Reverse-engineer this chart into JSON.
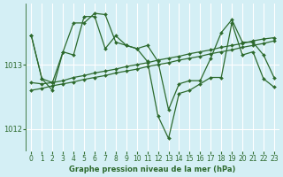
{
  "background_color": "#d4eff5",
  "grid_color": "#ffffff",
  "line_color": "#2d6a2d",
  "marker_color": "#2d6a2d",
  "title": "Graphe pression niveau de la mer (hPa)",
  "xlim": [
    -0.5,
    23.5
  ],
  "ylim": [
    1011.65,
    1013.95
  ],
  "yticks": [
    1012,
    1013
  ],
  "xticks": [
    0,
    1,
    2,
    3,
    4,
    5,
    6,
    7,
    8,
    9,
    10,
    11,
    12,
    13,
    14,
    15,
    16,
    17,
    18,
    19,
    20,
    21,
    22,
    23
  ],
  "series": [
    [
      1013.45,
      1012.78,
      1012.72,
      1013.2,
      1013.65,
      1013.65,
      1013.8,
      1013.78,
      1013.35,
      1013.3,
      1013.25,
      1013.05,
      1012.2,
      1011.85,
      1012.55,
      1012.6,
      1012.7,
      1012.8,
      1012.8,
      1013.65,
      1013.15,
      1013.2,
      1012.78,
      1012.65
    ],
    [
      1013.45,
      1012.78,
      1012.6,
      1013.2,
      1013.15,
      1013.75,
      1013.75,
      1013.25,
      1013.45,
      1013.3,
      1013.25,
      1013.3,
      1013.05,
      1012.3,
      1012.7,
      1012.75,
      1012.75,
      1013.1,
      1013.5,
      1013.7,
      1013.35,
      1013.35,
      1013.15,
      1012.8
    ],
    [
      1012.72,
      1012.7,
      1012.72,
      1012.75,
      1012.8,
      1012.83,
      1012.87,
      1012.9,
      1012.93,
      1012.97,
      1013.0,
      1013.03,
      1013.07,
      1013.1,
      1013.13,
      1013.17,
      1013.2,
      1013.23,
      1013.27,
      1013.3,
      1013.33,
      1013.37,
      1013.4,
      1013.42
    ],
    [
      1012.6,
      1012.63,
      1012.67,
      1012.7,
      1012.73,
      1012.77,
      1012.8,
      1012.83,
      1012.87,
      1012.9,
      1012.93,
      1012.97,
      1013.0,
      1013.03,
      1013.07,
      1013.1,
      1013.13,
      1013.17,
      1013.2,
      1013.23,
      1013.27,
      1013.3,
      1013.33,
      1013.37
    ]
  ]
}
